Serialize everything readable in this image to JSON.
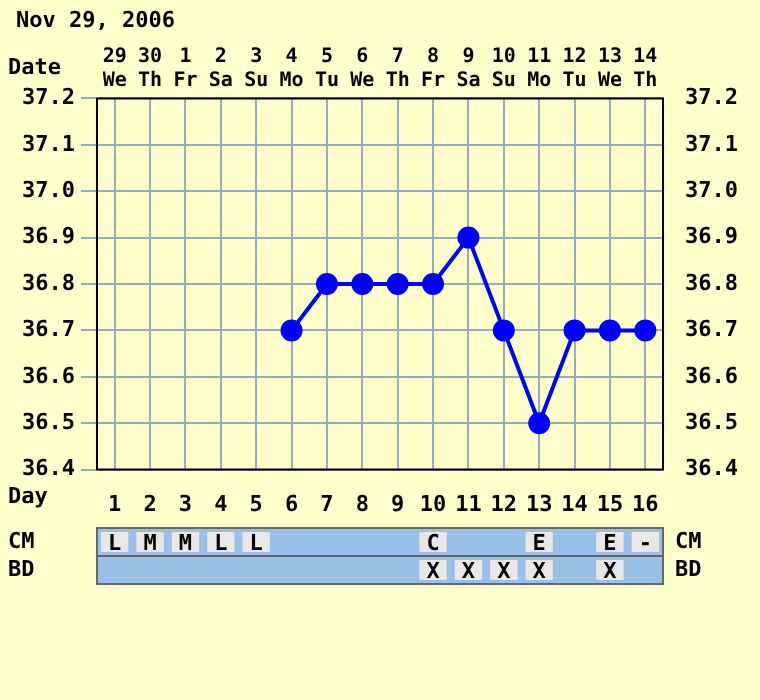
{
  "chart_data": {
    "type": "line",
    "title": "Nov 29, 2006",
    "xlabel": "Date",
    "x2label": "Day",
    "categories": [
      "29 We",
      "30 Th",
      "1 Fr",
      "2 Sa",
      "3 Su",
      "4 Mo",
      "5 Tu",
      "6 We",
      "7 Th",
      "8 Fr",
      "9 Sa",
      "10 Su",
      "11 Mo",
      "12 Tu",
      "13 We",
      "14 Th"
    ],
    "values": [
      null,
      null,
      null,
      null,
      null,
      36.7,
      36.8,
      36.8,
      36.8,
      36.8,
      36.9,
      36.7,
      36.5,
      36.7,
      36.7,
      36.7
    ],
    "color": "#0000ff",
    "marker": "circle",
    "line_style": "solid",
    "grid": true,
    "legend": false,
    "ylim": [
      36.4,
      37.2
    ],
    "yticks": [
      {
        "value": 36.4,
        "label": "36.4"
      },
      {
        "value": 36.5,
        "label": "36.5"
      },
      {
        "value": 36.6,
        "label": "36.6"
      },
      {
        "value": 36.7,
        "label": "36.7"
      },
      {
        "value": 36.8,
        "label": "36.8"
      },
      {
        "value": 36.9,
        "label": "36.9"
      },
      {
        "value": 37.0,
        "label": "37.0"
      },
      {
        "value": 37.1,
        "label": "37.1"
      },
      {
        "value": 37.2,
        "label": "37.2"
      }
    ],
    "y2lim": [
      36.4,
      37.2
    ],
    "y2ticks": [
      {
        "value": 36.4,
        "label": "36.4"
      },
      {
        "value": 36.5,
        "label": "36.5"
      },
      {
        "value": 36.6,
        "label": "36.6"
      },
      {
        "value": 36.7,
        "label": "36.7"
      },
      {
        "value": 36.8,
        "label": "36.8"
      },
      {
        "value": 36.9,
        "label": "36.9"
      },
      {
        "value": 37.0,
        "label": "37.0"
      },
      {
        "value": 37.1,
        "label": "37.1"
      },
      {
        "value": 37.2,
        "label": "37.2"
      }
    ],
    "x2lim": [
      0.5,
      16.5
    ],
    "x2ticks": [
      1,
      2,
      3,
      4,
      5,
      6,
      7,
      8,
      9,
      10,
      11,
      12,
      13,
      14,
      15,
      16
    ],
    "annotations": [
      "CM",
      "L",
      "M",
      "M",
      "L",
      "L",
      null,
      null,
      null,
      null,
      "C",
      null,
      null,
      "E",
      null,
      "E",
      "-",
      "BD",
      null,
      null,
      null,
      null,
      null,
      null,
      null,
      null,
      null,
      "X",
      "X",
      "X",
      "X",
      null,
      "X",
      null
    ]
  }
}
